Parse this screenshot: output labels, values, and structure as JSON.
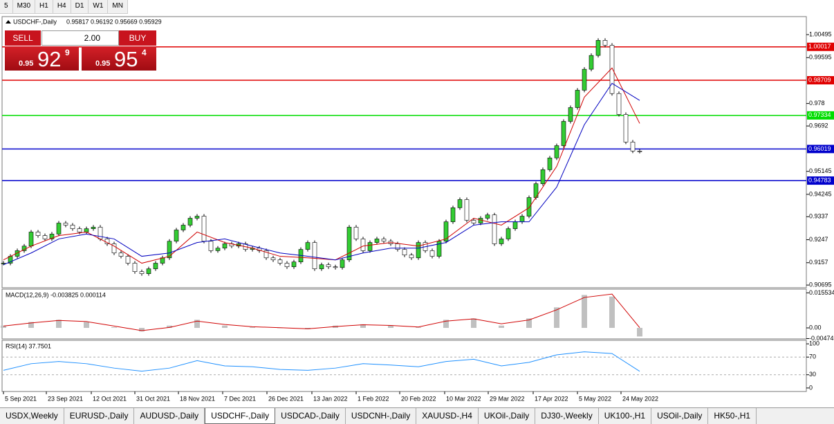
{
  "toolbar": {
    "timeframes": [
      "5",
      "M30",
      "H1",
      "H4",
      "D1",
      "W1",
      "MN"
    ]
  },
  "trade_panel": {
    "sell": "SELL",
    "buy": "BUY",
    "volume": "2.00",
    "bid_prefix": "0.95",
    "bid_big": "92",
    "bid_pip": "9",
    "ask_prefix": "0.95",
    "ask_big": "95",
    "ask_pip": "4"
  },
  "chart_data": {
    "type": "candlestick",
    "title": "USDCHF-,Daily",
    "ohlc": "0.95817 0.96192 0.95669 0.95929",
    "up_color": "#33cc33",
    "down_color": "#ffffff",
    "closes": [
      0.9155,
      0.9182,
      0.9204,
      0.9222,
      0.9277,
      0.9263,
      0.925,
      0.9269,
      0.9312,
      0.9304,
      0.929,
      0.9277,
      0.929,
      0.9296,
      0.925,
      0.9231,
      0.9195,
      0.9182,
      0.9155,
      0.9122,
      0.9114,
      0.9133,
      0.9155,
      0.9176,
      0.9241,
      0.9285,
      0.9304,
      0.9331,
      0.9339,
      0.9241,
      0.9204,
      0.9214,
      0.9231,
      0.9222,
      0.9231,
      0.9209,
      0.9214,
      0.9204,
      0.9176,
      0.9168,
      0.9155,
      0.9141,
      0.916,
      0.9209,
      0.9236,
      0.9133,
      0.9149,
      0.9141,
      0.9138,
      0.9168,
      0.9296,
      0.925,
      0.9204,
      0.9236,
      0.925,
      0.9241,
      0.9231,
      0.9209,
      0.9187,
      0.9176,
      0.9236,
      0.9204,
      0.9182,
      0.9241,
      0.9317,
      0.9372,
      0.9404,
      0.9323,
      0.9312,
      0.9331,
      0.9344,
      0.9231,
      0.925,
      0.929,
      0.9317,
      0.9339,
      0.9412,
      0.9466,
      0.9521,
      0.9567,
      0.9615,
      0.971,
      0.9764,
      0.9832,
      0.9914,
      0.9968,
      1.0027,
      1.0008,
      0.9819,
      0.9737,
      0.9629,
      0.9594,
      0.9593
    ],
    "moving_averages": [
      {
        "color": "#d00000",
        "values": [
          0.9168,
          0.9222,
          0.9263,
          0.9277,
          0.9222,
          0.9155,
          0.9182,
          0.9277,
          0.9236,
          0.9214,
          0.9182,
          0.9176,
          0.9168,
          0.9222,
          0.9236,
          0.9222,
          0.925,
          0.9331,
          0.9304,
          0.9372,
          0.9534,
          0.9805,
          0.9919,
          0.9702
        ]
      },
      {
        "color": "#0000c0",
        "values": [
          0.9149,
          0.9195,
          0.925,
          0.9269,
          0.925,
          0.9182,
          0.9195,
          0.9236,
          0.925,
          0.9222,
          0.9195,
          0.9182,
          0.9168,
          0.9195,
          0.9214,
          0.9214,
          0.9236,
          0.9304,
          0.9317,
          0.9317,
          0.9453,
          0.9697,
          0.9859,
          0.9792
        ]
      }
    ],
    "ylim": [
      0.9059,
      1.012
    ],
    "yticks": [
      1.00495,
      0.99595,
      0.978,
      0.9692,
      0.95145,
      0.94245,
      0.9337,
      0.9247,
      0.9157,
      0.90695
    ],
    "levels": [
      {
        "value": 1.00017,
        "color": "#e00000"
      },
      {
        "value": 0.98709,
        "color": "#e00000"
      },
      {
        "value": 0.97334,
        "color": "#00dd00"
      },
      {
        "value": 0.96019,
        "color": "#0000cc"
      },
      {
        "value": 0.94783,
        "color": "#0000cc"
      }
    ],
    "x_labels": [
      "5 Sep 2021",
      "23 Sep 2021",
      "12 Oct 2021",
      "31 Oct 2021",
      "18 Nov 2021",
      "7 Dec 2021",
      "26 Dec 2021",
      "13 Jan 2022",
      "1 Feb 2022",
      "20 Feb 2022",
      "10 Mar 2022",
      "29 Mar 2022",
      "17 Apr 2022",
      "5 May 2022",
      "24 May 2022"
    ]
  },
  "macd": {
    "title": "MACD(12,26,9) -0.003825 0.000114",
    "ylim": [
      -0.0049,
      0.0172
    ],
    "yticks": [
      0.015534,
      {
        "value": 0,
        "label": "0.00"
      },
      -0.004741
    ],
    "histogram_color": "#c0c0c0",
    "signal_color": "#d00000",
    "histogram": [
      0.001,
      0.0026,
      0.0036,
      0.0026,
      0.0003,
      -0.0016,
      0.001,
      0.0036,
      0.001,
      0.0003,
      0.0,
      -0.0006,
      0.001,
      0.0016,
      0.001,
      0.0003,
      0.0036,
      0.0042,
      0.001,
      0.0042,
      0.0091,
      0.0146,
      0.0139,
      -0.0038
    ],
    "signal": [
      0.0008,
      0.0022,
      0.0033,
      0.0028,
      0.0008,
      -0.0012,
      0.0002,
      0.003,
      0.0015,
      0.0005,
      0.0001,
      -0.0004,
      0.0006,
      0.0014,
      0.0011,
      0.0004,
      0.003,
      0.004,
      0.0018,
      0.0035,
      0.008,
      0.0135,
      0.015,
      0.0001
    ]
  },
  "rsi": {
    "title": "RSI(14) 37.7501",
    "ylim": [
      -8,
      108
    ],
    "yticks": [
      100,
      70,
      30,
      0
    ],
    "levels": [
      70,
      30
    ],
    "color": "#1e90ff",
    "values": [
      40,
      55,
      60,
      55,
      45,
      38,
      45,
      62,
      50,
      48,
      42,
      40,
      45,
      55,
      52,
      48,
      60,
      65,
      50,
      58,
      75,
      82,
      78,
      37.75
    ]
  },
  "tabs": {
    "items": [
      "USDX,Weekly",
      "EURUSD-,Daily",
      "AUDUSD-,Daily",
      "USDCHF-,Daily",
      "USDCAD-,Daily",
      "USDCNH-,Daily",
      "XAUUSD-,H4",
      "UKOil-,Daily",
      "DJ30-,Weekly",
      "UK100-,H1",
      "USOil-,Daily",
      "HK50-,H1"
    ],
    "active": 3
  }
}
